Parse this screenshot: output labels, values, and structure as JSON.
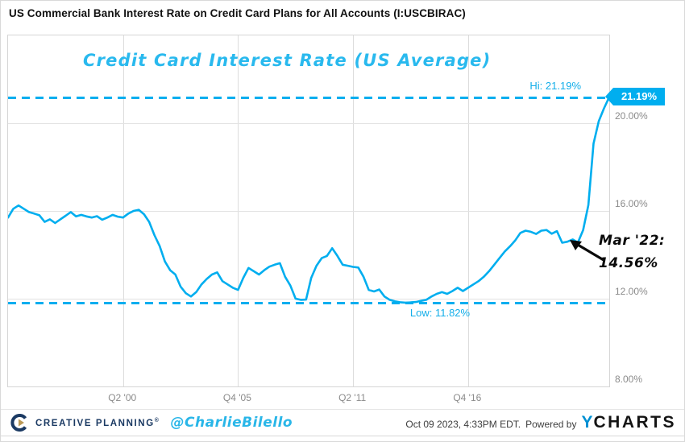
{
  "header": {
    "title": "US Commercial Bank Interest Rate on Credit Card Plans for All Accounts (I:USCBIRAC)"
  },
  "chart": {
    "title": "Credit Card Interest Rate (US Average)",
    "hi_label": "Hi: 21.19%",
    "low_label": "Low: 11.82%",
    "badge_label": "21.19%",
    "annotation_line1": "Mar '22:",
    "annotation_line2": "14.56%",
    "y_tick_labels": [
      "20.00%",
      "16.00%",
      "12.00%",
      "8.00%"
    ],
    "x_tick_labels": [
      "Q2 '00",
      "Q4 '05",
      "Q2 '11",
      "Q4 '16"
    ]
  },
  "footer": {
    "brand": "CREATIVE PLANNING",
    "brand_reg": "®",
    "handle": "@CharlieBilello",
    "timestamp": "Oct 09 2023, 4:33PM EDT.",
    "powered_by": "Powered by",
    "ycharts_y": "Y",
    "ycharts_rest": "CHARTS"
  },
  "colors": {
    "accent_cyan": "#00aeef",
    "title_cyan": "#29b9ee",
    "cp_navy": "#1b3a63",
    "cp_gold": "#bb9a57",
    "ycharts_blue": "#0090d3",
    "grid_gray": "#e3e3e3",
    "tick_gray": "#8b8b8b"
  },
  "chart_data": {
    "type": "line",
    "title": "Credit Card Interest Rate (US Average)",
    "series_name": "US Commercial Bank Interest Rate on Credit Card Plans for All Accounts (I:USCBIRAC)",
    "frequency": "quarterly",
    "start_period": "1994 Q4",
    "end_period": "2023 Q3",
    "values": [
      15.7,
      16.1,
      16.25,
      16.1,
      15.95,
      15.88,
      15.8,
      15.5,
      15.62,
      15.45,
      15.62,
      15.78,
      15.95,
      15.75,
      15.82,
      15.75,
      15.7,
      15.76,
      15.6,
      15.7,
      15.82,
      15.74,
      15.7,
      15.88,
      16.0,
      16.05,
      15.85,
      15.5,
      14.9,
      14.4,
      13.7,
      13.3,
      13.1,
      12.55,
      12.25,
      12.1,
      12.3,
      12.65,
      12.9,
      13.1,
      13.2,
      12.8,
      12.65,
      12.5,
      12.4,
      12.95,
      13.4,
      13.25,
      13.1,
      13.3,
      13.46,
      13.55,
      13.62,
      13.0,
      12.6,
      12.0,
      11.95,
      11.96,
      12.95,
      13.5,
      13.85,
      13.95,
      14.3,
      13.95,
      13.55,
      13.5,
      13.45,
      13.42,
      13.0,
      12.4,
      12.33,
      12.42,
      12.1,
      11.95,
      11.88,
      11.84,
      11.82,
      11.83,
      11.85,
      11.9,
      11.95,
      12.1,
      12.22,
      12.3,
      12.22,
      12.35,
      12.5,
      12.35,
      12.5,
      12.65,
      12.8,
      13.0,
      13.25,
      13.55,
      13.85,
      14.15,
      14.38,
      14.65,
      15.0,
      15.1,
      15.05,
      14.95,
      15.1,
      15.13,
      14.96,
      15.08,
      14.55,
      14.6,
      14.7,
      14.56,
      15.13,
      16.27,
      19.07,
      20.09,
      20.68,
      21.19
    ],
    "hi": 21.19,
    "low": 11.82,
    "ylim": [
      8,
      24
    ],
    "ytick_values": [
      20,
      16,
      12,
      8
    ],
    "ytick_labels": [
      "20.00%",
      "16.00%",
      "12.00%",
      "8.00%"
    ],
    "xticks": [
      {
        "label": "Q2 '00",
        "index": 22
      },
      {
        "label": "Q4 '05",
        "index": 44
      },
      {
        "label": "Q2 '11",
        "index": 66
      },
      {
        "label": "Q4 '16",
        "index": 88
      }
    ],
    "annotations": [
      {
        "label": "Mar '22: 14.56%",
        "period": "2022 Q1",
        "value": 14.56
      },
      {
        "label": "Hi: 21.19%",
        "period": "2023 Q3",
        "value": 21.19
      },
      {
        "label": "Low: 11.82%",
        "period": "2013 Q4",
        "value": 11.82
      }
    ],
    "grid": true,
    "legend": "none",
    "line_color": "#00aeef"
  }
}
